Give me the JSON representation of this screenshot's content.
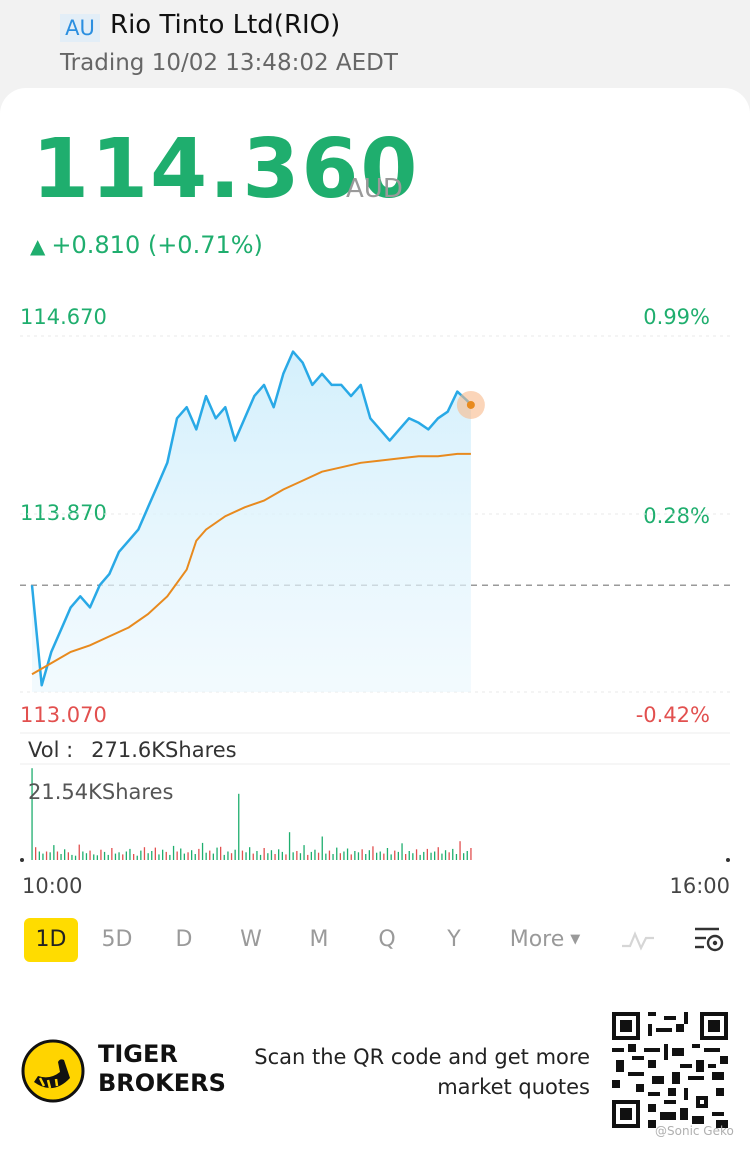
{
  "header": {
    "exchange": "AU",
    "name": "Rio Tinto Ltd(RIO)",
    "status": "Trading 10/02 13:48:02 AEDT"
  },
  "quote": {
    "price": "114.360",
    "currency": "AUD",
    "change": "+0.810 (+0.71%)"
  },
  "chart_data": {
    "type": "line",
    "x_start_label": "10:00",
    "x_end_label": "16:00",
    "y_labels_left": [
      "114.670",
      "113.870",
      "113.070"
    ],
    "y_labels_right": [
      "0.99%",
      "0.28%",
      "-0.42%"
    ],
    "ylim": [
      113.07,
      114.67
    ],
    "prev_close": 113.55,
    "x_range": [
      0,
      360
    ],
    "series": [
      {
        "key": "price",
        "color": "#29a9e6",
        "x": [
          0,
          5,
          10,
          15,
          20,
          25,
          30,
          35,
          40,
          45,
          50,
          55,
          60,
          65,
          70,
          75,
          80,
          85,
          90,
          95,
          100,
          105,
          110,
          115,
          120,
          125,
          130,
          135,
          140,
          145,
          150,
          155,
          160,
          165,
          170,
          175,
          180,
          185,
          190,
          195,
          200,
          205,
          210,
          215,
          220,
          225,
          227
        ],
        "y": [
          113.55,
          113.1,
          113.25,
          113.35,
          113.45,
          113.5,
          113.45,
          113.55,
          113.6,
          113.7,
          113.75,
          113.8,
          113.9,
          114.0,
          114.1,
          114.3,
          114.35,
          114.25,
          114.4,
          114.3,
          114.35,
          114.2,
          114.3,
          114.4,
          114.45,
          114.35,
          114.5,
          114.6,
          114.55,
          114.45,
          114.5,
          114.45,
          114.45,
          114.4,
          114.45,
          114.3,
          114.25,
          114.2,
          114.25,
          114.3,
          114.28,
          114.25,
          114.3,
          114.33,
          114.42,
          114.38,
          114.36
        ]
      },
      {
        "key": "avg",
        "color": "#e88a1e",
        "x": [
          0,
          10,
          20,
          30,
          40,
          50,
          60,
          70,
          80,
          85,
          90,
          100,
          110,
          120,
          130,
          140,
          150,
          160,
          170,
          180,
          190,
          200,
          210,
          220,
          227
        ],
        "y": [
          113.15,
          113.2,
          113.25,
          113.28,
          113.32,
          113.36,
          113.42,
          113.5,
          113.62,
          113.75,
          113.8,
          113.86,
          113.9,
          113.93,
          113.98,
          114.02,
          114.06,
          114.08,
          114.1,
          114.11,
          114.12,
          114.13,
          114.13,
          114.14,
          114.14
        ]
      }
    ],
    "volume": {
      "total_label": "Vol :",
      "total_value": "271.6KShares",
      "max_label": "21.54KShares",
      "max": 21.54,
      "unit": "KShares",
      "bars": [
        21.5,
        3,
        2,
        1.5,
        2,
        1.8,
        3.5,
        2,
        1.4,
        2.5,
        1.8,
        1.2,
        1,
        3.6,
        2,
        1.6,
        2.2,
        1.3,
        1.1,
        2.4,
        1.9,
        1.2,
        2.8,
        1.5,
        1.8,
        1.3,
        2,
        2.6,
        1.4,
        1,
        2.2,
        3,
        1.6,
        2.1,
        2.9,
        1.3,
        2.4,
        1.9,
        1.2,
        3.3,
        2,
        2.7,
        1.5,
        1.8,
        2.3,
        1.4,
        2.6,
        4,
        1.7,
        2.2,
        1.5,
        2.9,
        3.1,
        1.2,
        2,
        1.6,
        2.4,
        15.5,
        2.2,
        1.8,
        3,
        1.5,
        2.1,
        1.2,
        2.8,
        1.6,
        2.3,
        1.4,
        2.5,
        1.9,
        1.3,
        6.5,
        1.8,
        2.1,
        1.6,
        3.5,
        1.2,
        1.9,
        2.4,
        1.7,
        5.5,
        1.5,
        2.2,
        1.4,
        2.9,
        1.6,
        2,
        2.7,
        1.3,
        2.1,
        1.8,
        2.5,
        1.4,
        2.3,
        3.2,
        1.7,
        2,
        1.5,
        2.8,
        1.3,
        2.2,
        1.9,
        3.9,
        1.4,
        2.1,
        1.6,
        2.5,
        1.2,
        1.9,
        2.6,
        1.7,
        2,
        3,
        1.5,
        2.3,
        1.8,
        2.6,
        1.4,
        4.4,
        1.6,
        2.1,
        2.8
      ]
    }
  },
  "periods": {
    "items": [
      "1D",
      "5D",
      "D",
      "W",
      "M",
      "Q",
      "Y"
    ],
    "active": "1D",
    "more": "More"
  },
  "colors": {
    "up": "#1fae6e",
    "down": "#e2504f",
    "active_tab": "#ffdc00"
  },
  "footer": {
    "brand_line1": "TIGER",
    "brand_line2": "BROKERS",
    "promo_line1": "Scan the QR code and get more",
    "promo_line2": "market quotes",
    "watermark": "@Sonic Geko"
  },
  "icons": [
    "chart-indicator-icon",
    "chart-settings-icon",
    "tiger-logo-icon",
    "qr-code"
  ]
}
